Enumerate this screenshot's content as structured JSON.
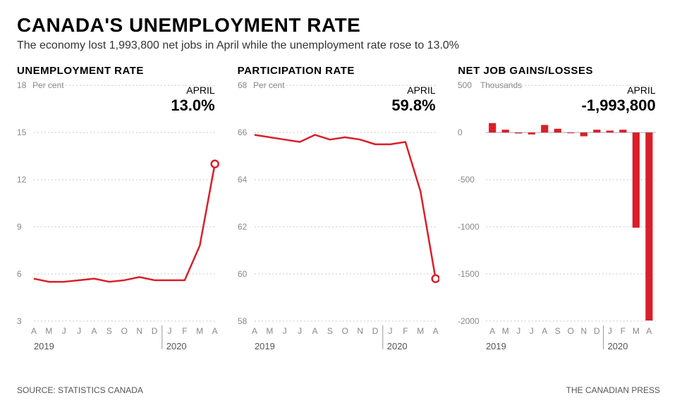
{
  "title": "CANADA'S UNEMPLOYMENT RATE",
  "subtitle": "The economy lost 1,993,800 net jobs in April while the unemployment rate rose to 13.0%",
  "source": "SOURCE: STATISTICS CANADA",
  "credit": "THE CANADIAN PRESS",
  "months": [
    "A",
    "M",
    "J",
    "J",
    "A",
    "S",
    "O",
    "N",
    "D",
    "J",
    "F",
    "M",
    "A"
  ],
  "year_labels": [
    "2019",
    "2020"
  ],
  "year_split_index": 9,
  "colors": {
    "line": "#d91f2a",
    "grid": "#c8c8c8",
    "zero": "#c8c8c8",
    "axis_text": "#888888",
    "marker_fill": "#ffffff"
  },
  "line_width": 2.5,
  "marker_radius": 5,
  "unemployment": {
    "title": "UNEMPLOYMENT RATE",
    "unit": "Per cent",
    "callout_label": "APRIL",
    "callout_value": "13.0%",
    "ymin": 3,
    "ymax": 18,
    "yticks": [
      3,
      6,
      9,
      12,
      15,
      18
    ],
    "values": [
      5.7,
      5.5,
      5.5,
      5.6,
      5.7,
      5.5,
      5.6,
      5.8,
      5.6,
      5.6,
      5.6,
      7.8,
      13.0
    ]
  },
  "participation": {
    "title": "PARTICIPATION RATE",
    "unit": "Per cent",
    "callout_label": "APRIL",
    "callout_value": "59.8%",
    "ymin": 58,
    "ymax": 68,
    "yticks": [
      58,
      60,
      62,
      64,
      66,
      68
    ],
    "values": [
      65.9,
      65.8,
      65.7,
      65.6,
      65.9,
      65.7,
      65.8,
      65.7,
      65.5,
      65.5,
      65.6,
      63.5,
      59.8
    ]
  },
  "netjobs": {
    "title": "NET JOB GAINS/LOSSES",
    "unit": "Thousands",
    "callout_label": "APRIL",
    "callout_value": "-1,993,800",
    "ymin": -2000,
    "ymax": 500,
    "yticks": [
      -2000,
      -1500,
      -1000,
      -500,
      0,
      500
    ],
    "values": [
      100,
      30,
      -10,
      -20,
      80,
      40,
      -5,
      -40,
      30,
      20,
      30,
      -1010,
      -1994
    ],
    "bar_color": "#d91f2a",
    "bar_width_ratio": 0.55
  }
}
